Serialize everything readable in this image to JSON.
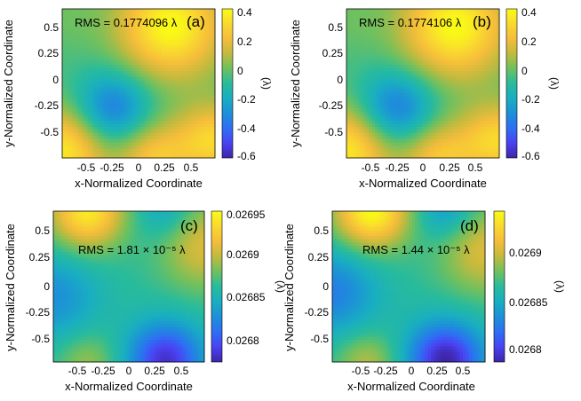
{
  "figure": {
    "panels": [
      {
        "label": "(a)",
        "rms_text": "RMS = 0.1774096 λ",
        "xlabel": "x-Normalized Coordinate",
        "ylabel": "y-Normalized Coordinate",
        "x_ticks": [
          "-0.5",
          "-0.25",
          "0",
          "0.25",
          "0.5"
        ],
        "y_ticks": [
          "0.5",
          "0.25",
          "0",
          "-0.25",
          "-0.5"
        ],
        "colorbar_ticks": [
          "0.4",
          "0.2",
          "0",
          "-0.2",
          "-0.4",
          "-0.6"
        ],
        "colorbar_label": "(λ)"
      },
      {
        "label": "(b)",
        "rms_text": "RMS = 0.1774106 λ",
        "xlabel": "x-Normalized Coordinate",
        "ylabel": "y-Normalized Coordinate",
        "x_ticks": [
          "-0.5",
          "-0.25",
          "0",
          "0.25",
          "0.5"
        ],
        "y_ticks": [
          "0.5",
          "0.25",
          "0",
          "-0.25",
          "-0.5"
        ],
        "colorbar_ticks": [
          "0.4",
          "0.2",
          "0",
          "-0.2",
          "-0.4",
          "-0.6"
        ],
        "colorbar_label": "(λ)"
      },
      {
        "label": "(c)",
        "rms_text": "RMS = 1.81 × 10⁻⁵ λ",
        "xlabel": "x-Normalized Coordinate",
        "ylabel": "y-Normalized Coordinate",
        "x_ticks": [
          "-0.5",
          "-0.25",
          "0",
          "0.25",
          "0.5"
        ],
        "y_ticks": [
          "0.5",
          "0.25",
          "0",
          "-0.25",
          "-0.5"
        ],
        "colorbar_ticks": [
          "0.02695",
          "0.0269",
          "0.02685",
          "0.0268"
        ],
        "colorbar_label": "(λ)"
      },
      {
        "label": "(d)",
        "rms_text": "RMS = 1.44 × 10⁻⁵ λ",
        "xlabel": "x-Normalized Coordinate",
        "ylabel": "y-Normalized Coordinate",
        "x_ticks": [
          "-0.5",
          "-0.25",
          "0",
          "0.25",
          "0.5"
        ],
        "y_ticks": [
          "0.5",
          "0.25",
          "0",
          "-0.25",
          "-0.5"
        ],
        "colorbar_ticks": [
          "0.0269",
          "0.02685",
          "0.0268"
        ],
        "colorbar_label": "(λ)"
      }
    ]
  },
  "colormap": [
    "#3e26a8",
    "#4a42f2",
    "#2e6ff3",
    "#1d90d8",
    "#19aec1",
    "#28bb9c",
    "#70c05e",
    "#c2ba3e",
    "#f5bd3b",
    "#f9d82f",
    "#f9fb15"
  ],
  "chart_data": [
    {
      "type": "heatmap",
      "panel": "(a)",
      "title": "RMS = 0.1774096 λ",
      "xlabel": "x-Normalized Coordinate",
      "ylabel": "y-Normalized Coordinate",
      "xlim": [
        -0.72,
        0.72
      ],
      "ylim": [
        -0.72,
        0.72
      ],
      "color_range": [
        -0.6,
        0.42
      ],
      "colorbar_label": "(λ)",
      "field": {
        "base": -0.05,
        "features": [
          {
            "x": 0.3,
            "y": 0.55,
            "amplitude": 0.47,
            "width": 0.35
          },
          {
            "x": -0.25,
            "y": -0.25,
            "amplitude": -0.33,
            "width": 0.25
          },
          {
            "x": -0.72,
            "y": -0.65,
            "amplitude": 0.42,
            "width": 0.3
          },
          {
            "x": 0.15,
            "y": -0.72,
            "amplitude": 0.3,
            "width": 0.25
          },
          {
            "x": 0.72,
            "y": -0.55,
            "amplitude": 0.35,
            "width": 0.25
          },
          {
            "x": -0.72,
            "y": 0.65,
            "amplitude": 0.05,
            "width": 0.25
          }
        ]
      }
    },
    {
      "type": "heatmap",
      "panel": "(b)",
      "title": "RMS = 0.1774106 λ",
      "xlabel": "x-Normalized Coordinate",
      "ylabel": "y-Normalized Coordinate",
      "xlim": [
        -0.72,
        0.72
      ],
      "ylim": [
        -0.72,
        0.72
      ],
      "color_range": [
        -0.6,
        0.42
      ],
      "colorbar_label": "(λ)",
      "field": {
        "base": -0.05,
        "features": [
          {
            "x": 0.3,
            "y": 0.55,
            "amplitude": 0.47,
            "width": 0.35
          },
          {
            "x": -0.25,
            "y": -0.25,
            "amplitude": -0.33,
            "width": 0.25
          },
          {
            "x": -0.72,
            "y": -0.65,
            "amplitude": 0.42,
            "width": 0.3
          },
          {
            "x": 0.15,
            "y": -0.72,
            "amplitude": 0.3,
            "width": 0.25
          },
          {
            "x": 0.72,
            "y": -0.55,
            "amplitude": 0.35,
            "width": 0.25
          },
          {
            "x": -0.72,
            "y": 0.65,
            "amplitude": 0.05,
            "width": 0.25
          }
        ]
      }
    },
    {
      "type": "heatmap",
      "panel": "(c)",
      "title": "RMS = 1.81 × 10⁻⁵ λ",
      "xlabel": "x-Normalized Coordinate",
      "ylabel": "y-Normalized Coordinate",
      "xlim": [
        -0.72,
        0.72
      ],
      "ylim": [
        -0.72,
        0.72
      ],
      "color_range": [
        0.02677,
        0.02697
      ],
      "colorbar_label": "(λ)",
      "field": {
        "base": 0.02687,
        "features": [
          {
            "x": -0.4,
            "y": 0.72,
            "amplitude": 9e-05,
            "width": 0.25
          },
          {
            "x": 0.72,
            "y": 0.4,
            "amplitude": 5e-05,
            "width": 0.3
          },
          {
            "x": 0.35,
            "y": -0.7,
            "amplitude": -9e-05,
            "width": 0.25
          },
          {
            "x": -0.72,
            "y": -0.1,
            "amplitude": -4e-05,
            "width": 0.3
          },
          {
            "x": 0.35,
            "y": 0.72,
            "amplitude": -3e-05,
            "width": 0.2
          },
          {
            "x": -0.4,
            "y": -0.72,
            "amplitude": 3e-05,
            "width": 0.2
          }
        ]
      }
    },
    {
      "type": "heatmap",
      "panel": "(d)",
      "title": "RMS = 1.44 × 10⁻⁵ λ",
      "xlabel": "x-Normalized Coordinate",
      "ylabel": "y-Normalized Coordinate",
      "xlim": [
        -0.72,
        0.72
      ],
      "ylim": [
        -0.72,
        0.72
      ],
      "color_range": [
        0.02678,
        0.02694
      ],
      "colorbar_label": "(λ)",
      "field": {
        "base": 0.02686,
        "features": [
          {
            "x": -0.35,
            "y": 0.72,
            "amplitude": 8e-05,
            "width": 0.25
          },
          {
            "x": 0.72,
            "y": 0.35,
            "amplitude": 4e-05,
            "width": 0.3
          },
          {
            "x": 0.35,
            "y": -0.7,
            "amplitude": -8e-05,
            "width": 0.25
          },
          {
            "x": -0.72,
            "y": -0.05,
            "amplitude": -4e-05,
            "width": 0.3
          },
          {
            "x": 0.35,
            "y": 0.72,
            "amplitude": -3e-05,
            "width": 0.2
          },
          {
            "x": -0.4,
            "y": -0.72,
            "amplitude": 3e-05,
            "width": 0.2
          }
        ]
      }
    }
  ]
}
